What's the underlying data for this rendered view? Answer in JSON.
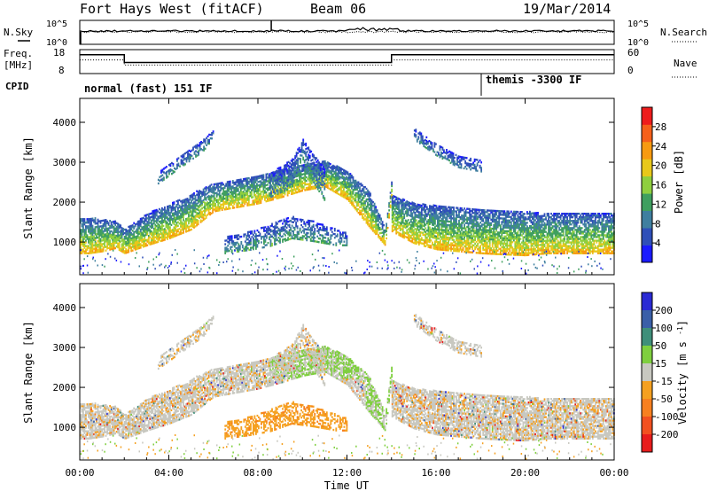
{
  "header": {
    "station": "Fort Hays West (fitACF)",
    "beam": "Beam 06",
    "date": "19/Mar/2014"
  },
  "nsky_panel": {
    "left_label": "N.Sky",
    "right_label": "N.Search",
    "left_ticks": [
      "10^5",
      "10^0"
    ],
    "right_ticks": [
      "10^5",
      "10^0"
    ]
  },
  "freq_panel": {
    "left_label_1": "Freq.",
    "left_label_2": "[MHz]",
    "right_label": "Nave",
    "left_ticks": [
      "18",
      "8"
    ],
    "right_ticks": [
      "60",
      "0"
    ]
  },
  "cpid_panel": {
    "label": "CPID",
    "mode_1": "normal (fast) 151 IF",
    "mode_2": "themis -3300 IF"
  },
  "chart_data": [
    {
      "type": "heatmap",
      "name": "power",
      "ylabel": "Slant Range [km]",
      "yticks": [
        1000,
        2000,
        3000,
        4000
      ],
      "ylim": [
        180,
        4600
      ],
      "colorbar_label": "Power [dB]",
      "colorbar_ticks": [
        4,
        8,
        12,
        16,
        20,
        24,
        28
      ],
      "colorbar_range": [
        0,
        32
      ],
      "colors": [
        "#1a1aff",
        "#2f4fb8",
        "#3f7f9f",
        "#3f9f5f",
        "#8fcf3f",
        "#e8c81a",
        "#f79a10",
        "#f5601a",
        "#ee1c1c"
      ],
      "bands": [
        {
          "x": [
            0.0,
            0.4,
            1.0,
            1.6,
            2.0,
            3.0,
            4.0,
            5.0,
            6.0,
            7.0,
            8.0,
            9.0,
            10.0,
            11.0,
            12.0,
            13.0,
            13.7,
            14.0
          ],
          "center": [
            1150,
            1150,
            1150,
            1180,
            1000,
            1300,
            1500,
            1750,
            2100,
            2200,
            2300,
            2450,
            2600,
            2700,
            2400,
            1800,
            1100,
            2400
          ],
          "width": [
            900,
            900,
            800,
            700,
            600,
            800,
            850,
            900,
            700,
            700,
            700,
            700,
            650,
            650,
            700,
            900,
            400,
            400
          ],
          "strength": 22
        },
        {
          "x": [
            14.0,
            15.0,
            16.0,
            17.0,
            18.0,
            19.0,
            20.0,
            21.0,
            22.0,
            23.0,
            24.0
          ],
          "center": [
            1700,
            1450,
            1350,
            1300,
            1250,
            1220,
            1200,
            1200,
            1200,
            1200,
            1200
          ],
          "width": [
            900,
            1000,
            1100,
            1100,
            1100,
            1100,
            1100,
            1000,
            1000,
            1000,
            1000
          ],
          "strength": 22
        },
        {
          "x": [
            6.5,
            7.5,
            8.5,
            9.5,
            10.5,
            11.5,
            12.0
          ],
          "center": [
            900,
            1000,
            1150,
            1350,
            1250,
            1100,
            1050
          ],
          "width": [
            400,
            450,
            550,
            550,
            500,
            400,
            300
          ],
          "strength": 12
        },
        {
          "x": [
            8.5,
            9.5,
            10.0,
            10.5,
            11.0
          ],
          "center": [
            2400,
            2700,
            3300,
            2800,
            2400
          ],
          "width": [
            600,
            700,
            500,
            700,
            800
          ],
          "strength": 10
        },
        {
          "x": [
            3.5,
            4.5,
            5.5,
            6.0
          ],
          "center": [
            2600,
            3000,
            3400,
            3700
          ],
          "width": [
            300,
            300,
            300,
            200
          ],
          "strength": 10
        },
        {
          "x": [
            15.0,
            16.0,
            17.0,
            18.0
          ],
          "center": [
            3700,
            3300,
            3000,
            2900
          ],
          "width": [
            300,
            300,
            300,
            300
          ],
          "strength": 9
        }
      ]
    },
    {
      "type": "heatmap",
      "name": "velocity",
      "ylabel": "Slant Range [km]",
      "yticks": [
        1000,
        2000,
        3000,
        4000
      ],
      "ylim": [
        180,
        4600
      ],
      "colorbar_label": "Velocity [m s^-1]",
      "colorbar_ticks": [
        200,
        100,
        50,
        15,
        -15,
        -50,
        -100,
        -200
      ],
      "colors": [
        "#2a2ad4",
        "#3a5fa8",
        "#3f8f7a",
        "#7fcf3f",
        "#c8c8c0",
        "#f5a020",
        "#f78020",
        "#f25020",
        "#e81c1c"
      ]
    }
  ],
  "x_axis": {
    "label": "Time UT",
    "ticks": [
      "00:00",
      "04:00",
      "08:00",
      "12:00",
      "16:00",
      "20:00",
      "00:00"
    ]
  }
}
